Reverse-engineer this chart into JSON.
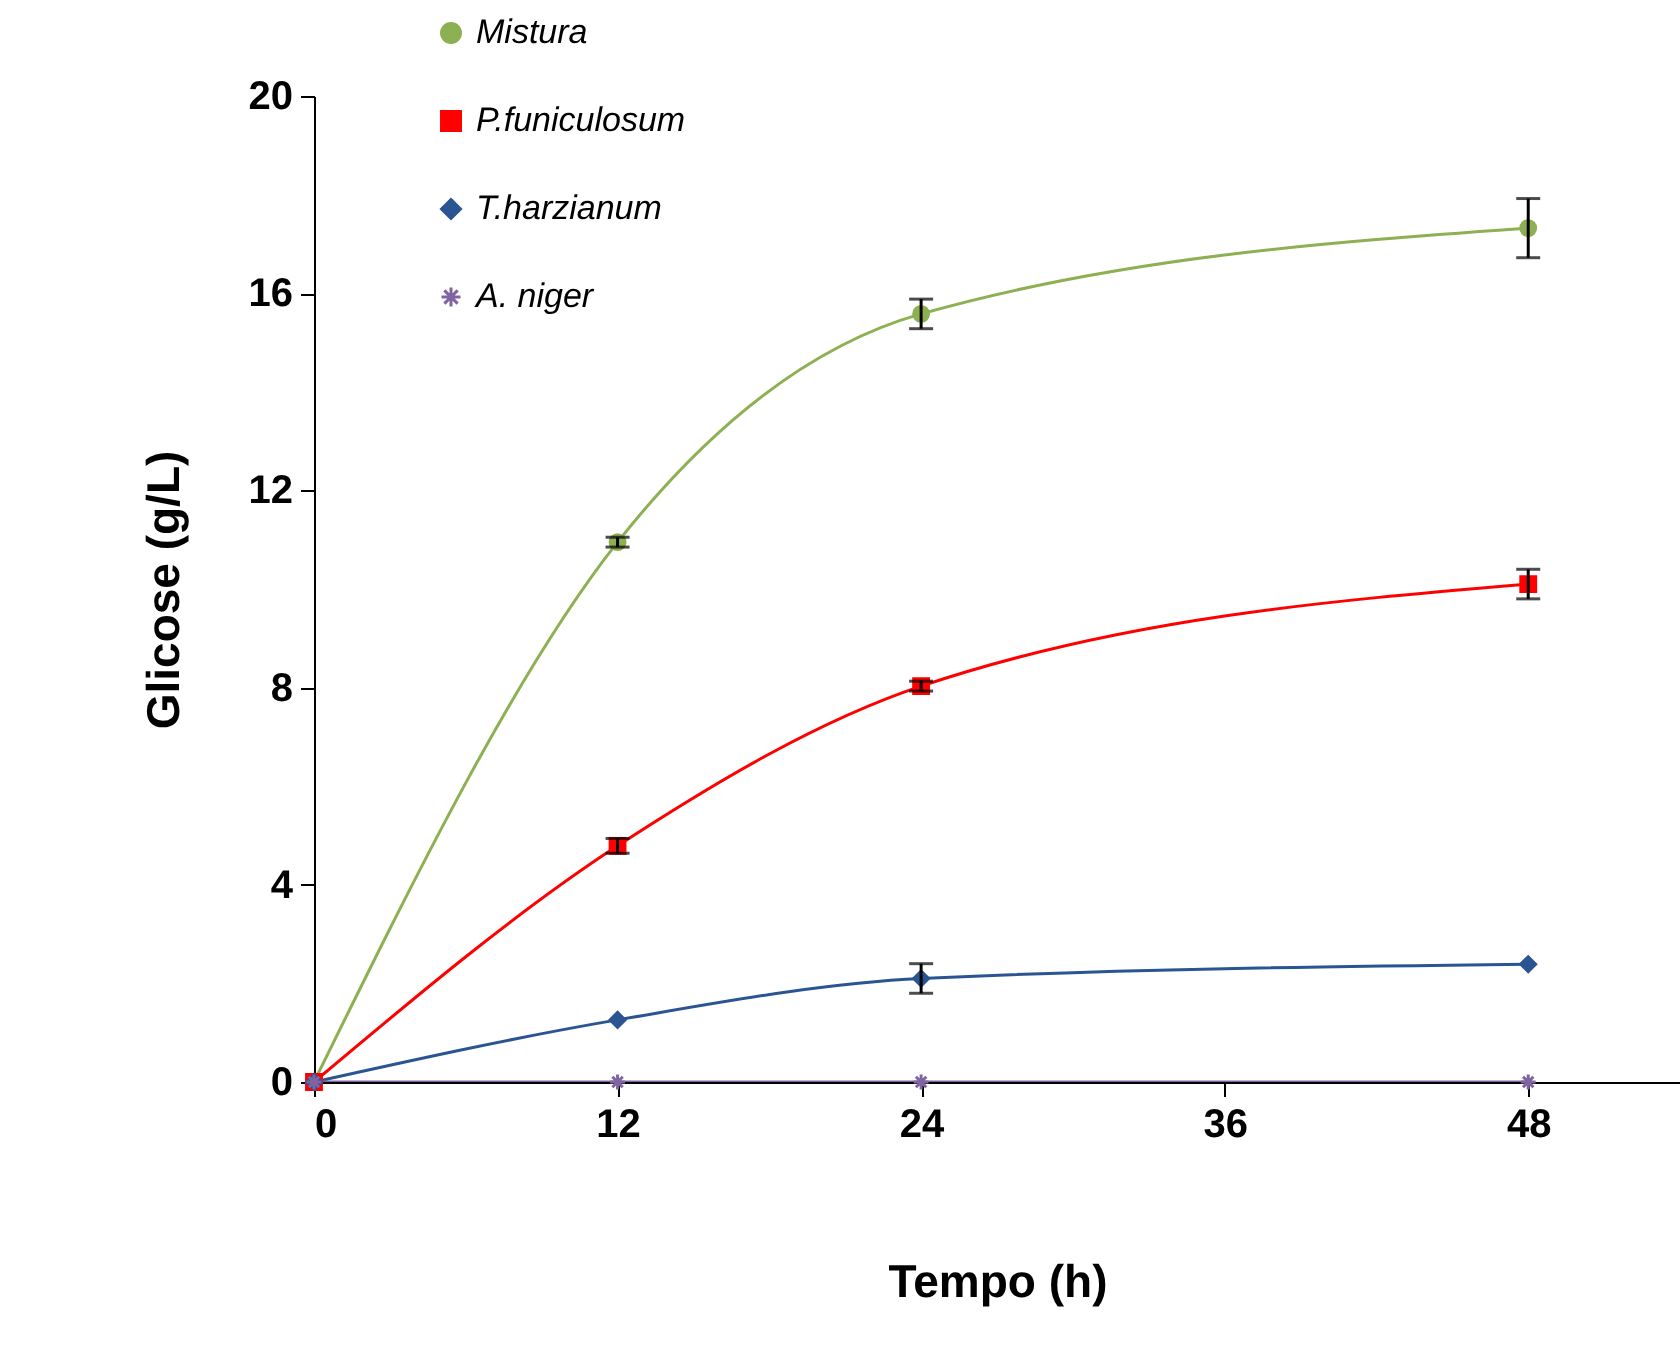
{
  "chart_data": {
    "type": "line",
    "xlabel": "Tempo (h)",
    "ylabel": "Glicose (g/L)",
    "x": [
      0,
      12,
      24,
      48
    ],
    "xlim": [
      0,
      54
    ],
    "xticks": [
      0,
      12,
      24,
      36,
      48
    ],
    "ylim": [
      0,
      20
    ],
    "yticks": [
      0,
      4,
      8,
      12,
      16,
      20
    ],
    "grid": false,
    "legend": "top left",
    "series": [
      {
        "name": "Mistura",
        "color": "#8db052",
        "marker": "circle",
        "values": [
          0,
          10.95,
          15.58,
          17.32
        ],
        "errors": [
          null,
          0.1,
          0.3,
          0.6
        ]
      },
      {
        "name": "P.funiculosum",
        "color": "#ff0000",
        "marker": "square",
        "values": [
          0,
          4.79,
          8.03,
          10.1
        ],
        "errors": [
          null,
          0.15,
          0.1,
          0.3
        ]
      },
      {
        "name": "T.harzianum",
        "color": "#2a5592",
        "marker": "diamond",
        "values": [
          0,
          1.26,
          2.1,
          2.39
        ],
        "errors": [
          null,
          null,
          0.3,
          null
        ]
      },
      {
        "name": "A. niger",
        "color": "#8064a2",
        "marker": "cross",
        "values": [
          0,
          0,
          0,
          0
        ]
      }
    ]
  }
}
